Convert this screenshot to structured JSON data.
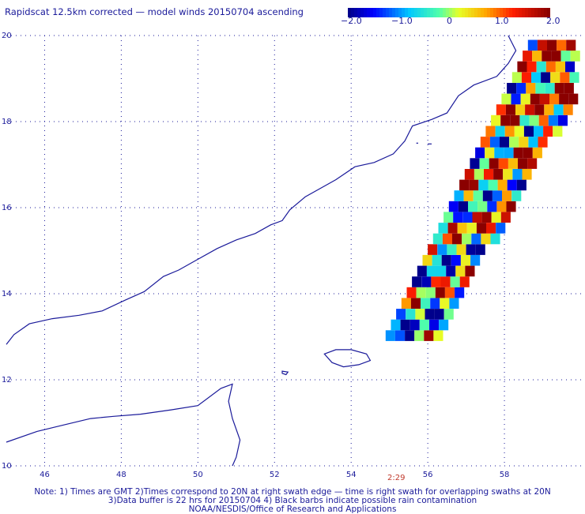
{
  "title": "Rapidscat 12.5km corrected — model winds 20150704 ascending",
  "colorbar": {
    "labels": [
      "−2.0",
      "−1.0",
      "0",
      "1.0",
      "2.0"
    ],
    "values": [
      -2.0,
      -1.0,
      0,
      1.0,
      2.0
    ]
  },
  "map": {
    "lon_range": [
      45,
      60
    ],
    "lat_range": [
      10,
      20
    ],
    "lon_ticks": [
      "46",
      "48",
      "50",
      "52",
      "54",
      "56",
      "58"
    ],
    "lat_ticks": [
      "20",
      "18",
      "16",
      "14",
      "12",
      "10"
    ],
    "colors": {
      "grid": "#1a1a9a",
      "coast": "#1a1a9a",
      "neg": "#0a1fff",
      "pos": "#8b0000"
    }
  },
  "swath_time": "2:29",
  "footnotes": [
    "Note: 1) Times are GMT 2)Times correspond to 20N at right swath edge — time is right swath for overlapping swaths at 20N",
    "3)Data buffer is 22 hrs for 20150704 4) Black barbs indicate possible rain contamination",
    "NOAA/NESDIS/Office of Research and Applications"
  ]
}
